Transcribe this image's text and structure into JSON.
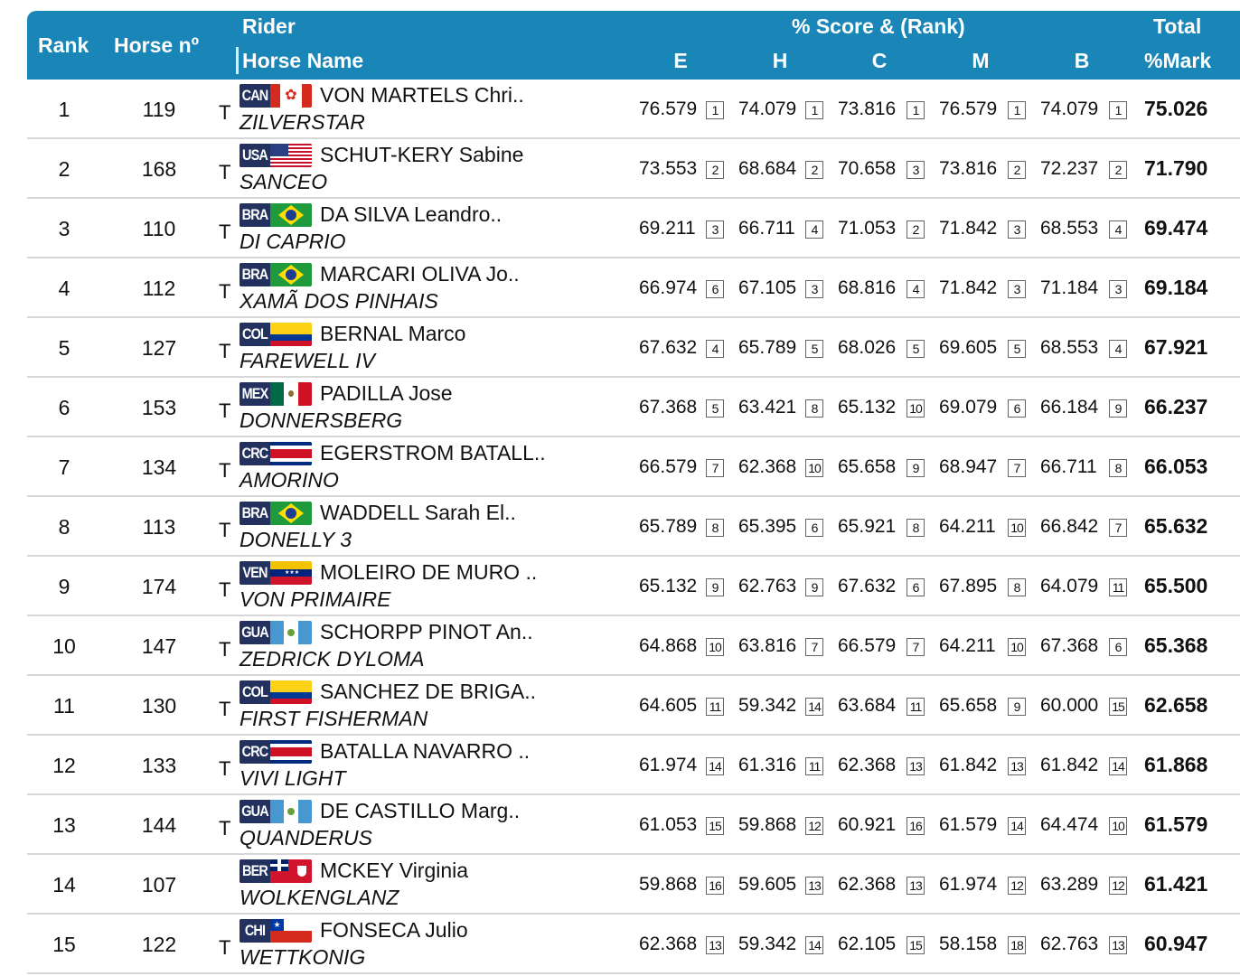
{
  "header": {
    "rank": "Rank",
    "horse_no": "Horse nº",
    "rider": "Rider",
    "horse_name": "Horse Name",
    "score_rank": "% Score & (Rank)",
    "judges": [
      "E",
      "H",
      "C",
      "M",
      "B"
    ],
    "total": "Total",
    "mark": "%Mark"
  },
  "colors": {
    "header_bg": "#1a86b8",
    "row_separator": "#d8d8d8"
  },
  "rows": [
    {
      "rank": "1",
      "horse_no": "119",
      "t": "T",
      "nation": "CAN",
      "rider": "VON MARTELS Chri..",
      "horse": "ZILVERSTAR",
      "scores": [
        {
          "v": "76.579",
          "r": "1"
        },
        {
          "v": "74.079",
          "r": "1"
        },
        {
          "v": "73.816",
          "r": "1"
        },
        {
          "v": "76.579",
          "r": "1"
        },
        {
          "v": "74.079",
          "r": "1"
        }
      ],
      "total": "75.026"
    },
    {
      "rank": "2",
      "horse_no": "168",
      "t": "T",
      "nation": "USA",
      "rider": "SCHUT-KERY Sabine",
      "horse": "SANCEO",
      "scores": [
        {
          "v": "73.553",
          "r": "2"
        },
        {
          "v": "68.684",
          "r": "2"
        },
        {
          "v": "70.658",
          "r": "3"
        },
        {
          "v": "73.816",
          "r": "2"
        },
        {
          "v": "72.237",
          "r": "2"
        }
      ],
      "total": "71.790"
    },
    {
      "rank": "3",
      "horse_no": "110",
      "t": "T",
      "nation": "BRA",
      "rider": "DA SILVA Leandro..",
      "horse": "DI CAPRIO",
      "scores": [
        {
          "v": "69.211",
          "r": "3"
        },
        {
          "v": "66.711",
          "r": "4"
        },
        {
          "v": "71.053",
          "r": "2"
        },
        {
          "v": "71.842",
          "r": "3"
        },
        {
          "v": "68.553",
          "r": "4"
        }
      ],
      "total": "69.474"
    },
    {
      "rank": "4",
      "horse_no": "112",
      "t": "T",
      "nation": "BRA",
      "rider": "MARCARI OLIVA Jo..",
      "horse": "XAMÃ DOS PINHAIS",
      "scores": [
        {
          "v": "66.974",
          "r": "6"
        },
        {
          "v": "67.105",
          "r": "3"
        },
        {
          "v": "68.816",
          "r": "4"
        },
        {
          "v": "71.842",
          "r": "3"
        },
        {
          "v": "71.184",
          "r": "3"
        }
      ],
      "total": "69.184"
    },
    {
      "rank": "5",
      "horse_no": "127",
      "t": "T",
      "nation": "COL",
      "rider": "BERNAL Marco",
      "horse": "FAREWELL IV",
      "scores": [
        {
          "v": "67.632",
          "r": "4"
        },
        {
          "v": "65.789",
          "r": "5"
        },
        {
          "v": "68.026",
          "r": "5"
        },
        {
          "v": "69.605",
          "r": "5"
        },
        {
          "v": "68.553",
          "r": "4"
        }
      ],
      "total": "67.921"
    },
    {
      "rank": "6",
      "horse_no": "153",
      "t": "T",
      "nation": "MEX",
      "rider": "PADILLA Jose",
      "horse": "DONNERSBERG",
      "scores": [
        {
          "v": "67.368",
          "r": "5"
        },
        {
          "v": "63.421",
          "r": "8"
        },
        {
          "v": "65.132",
          "r": "10"
        },
        {
          "v": "69.079",
          "r": "6"
        },
        {
          "v": "66.184",
          "r": "9"
        }
      ],
      "total": "66.237"
    },
    {
      "rank": "7",
      "horse_no": "134",
      "t": "T",
      "nation": "CRC",
      "rider": "EGERSTROM BATALL..",
      "horse": "AMORINO",
      "scores": [
        {
          "v": "66.579",
          "r": "7"
        },
        {
          "v": "62.368",
          "r": "10"
        },
        {
          "v": "65.658",
          "r": "9"
        },
        {
          "v": "68.947",
          "r": "7"
        },
        {
          "v": "66.711",
          "r": "8"
        }
      ],
      "total": "66.053"
    },
    {
      "rank": "8",
      "horse_no": "113",
      "t": "T",
      "nation": "BRA",
      "rider": "WADDELL Sarah El..",
      "horse": "DONELLY 3",
      "scores": [
        {
          "v": "65.789",
          "r": "8"
        },
        {
          "v": "65.395",
          "r": "6"
        },
        {
          "v": "65.921",
          "r": "8"
        },
        {
          "v": "64.211",
          "r": "10"
        },
        {
          "v": "66.842",
          "r": "7"
        }
      ],
      "total": "65.632"
    },
    {
      "rank": "9",
      "horse_no": "174",
      "t": "T",
      "nation": "VEN",
      "rider": "MOLEIRO DE MURO ..",
      "horse": "VON PRIMAIRE",
      "scores": [
        {
          "v": "65.132",
          "r": "9"
        },
        {
          "v": "62.763",
          "r": "9"
        },
        {
          "v": "67.632",
          "r": "6"
        },
        {
          "v": "67.895",
          "r": "8"
        },
        {
          "v": "64.079",
          "r": "11"
        }
      ],
      "total": "65.500"
    },
    {
      "rank": "10",
      "horse_no": "147",
      "t": "T",
      "nation": "GUA",
      "rider": "SCHORPP PINOT An..",
      "horse": "ZEDRICK DYLOMA",
      "scores": [
        {
          "v": "64.868",
          "r": "10"
        },
        {
          "v": "63.816",
          "r": "7"
        },
        {
          "v": "66.579",
          "r": "7"
        },
        {
          "v": "64.211",
          "r": "10"
        },
        {
          "v": "67.368",
          "r": "6"
        }
      ],
      "total": "65.368"
    },
    {
      "rank": "11",
      "horse_no": "130",
      "t": "T",
      "nation": "COL",
      "rider": "SANCHEZ DE BRIGA..",
      "horse": "FIRST FISHERMAN",
      "scores": [
        {
          "v": "64.605",
          "r": "11"
        },
        {
          "v": "59.342",
          "r": "14"
        },
        {
          "v": "63.684",
          "r": "11"
        },
        {
          "v": "65.658",
          "r": "9"
        },
        {
          "v": "60.000",
          "r": "15"
        }
      ],
      "total": "62.658"
    },
    {
      "rank": "12",
      "horse_no": "133",
      "t": "T",
      "nation": "CRC",
      "rider": "BATALLA NAVARRO ..",
      "horse": "VIVI LIGHT",
      "scores": [
        {
          "v": "61.974",
          "r": "14"
        },
        {
          "v": "61.316",
          "r": "11"
        },
        {
          "v": "62.368",
          "r": "13"
        },
        {
          "v": "61.842",
          "r": "13"
        },
        {
          "v": "61.842",
          "r": "14"
        }
      ],
      "total": "61.868"
    },
    {
      "rank": "13",
      "horse_no": "144",
      "t": "T",
      "nation": "GUA",
      "rider": "DE CASTILLO Marg..",
      "horse": "QUANDERUS",
      "scores": [
        {
          "v": "61.053",
          "r": "15"
        },
        {
          "v": "59.868",
          "r": "12"
        },
        {
          "v": "60.921",
          "r": "16"
        },
        {
          "v": "61.579",
          "r": "14"
        },
        {
          "v": "64.474",
          "r": "10"
        }
      ],
      "total": "61.579"
    },
    {
      "rank": "14",
      "horse_no": "107",
      "t": "",
      "nation": "BER",
      "rider": "MCKEY Virginia",
      "horse": "WOLKENGLANZ",
      "scores": [
        {
          "v": "59.868",
          "r": "16"
        },
        {
          "v": "59.605",
          "r": "13"
        },
        {
          "v": "62.368",
          "r": "13"
        },
        {
          "v": "61.974",
          "r": "12"
        },
        {
          "v": "63.289",
          "r": "12"
        }
      ],
      "total": "61.421"
    },
    {
      "rank": "15",
      "horse_no": "122",
      "t": "T",
      "nation": "CHI",
      "rider": "FONSECA Julio",
      "horse": "WETTKONIG",
      "scores": [
        {
          "v": "62.368",
          "r": "13"
        },
        {
          "v": "59.342",
          "r": "14"
        },
        {
          "v": "62.105",
          "r": "15"
        },
        {
          "v": "58.158",
          "r": "18"
        },
        {
          "v": "62.763",
          "r": "13"
        }
      ],
      "total": "60.947"
    }
  ]
}
